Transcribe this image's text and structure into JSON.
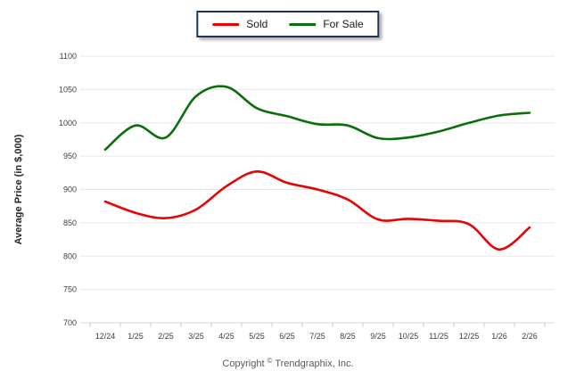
{
  "chart_data": {
    "type": "line",
    "categories": [
      "12/24",
      "1/25",
      "2/25",
      "3/25",
      "4/25",
      "5/25",
      "6/25",
      "7/25",
      "8/25",
      "9/25",
      "10/25",
      "11/25",
      "12/25",
      "1/26",
      "2/26"
    ],
    "series": [
      {
        "name": "Sold",
        "color": "#e60505",
        "values": [
          882,
          865,
          857,
          870,
          905,
          927,
          910,
          900,
          885,
          855,
          856,
          853,
          848,
          810,
          843
        ]
      },
      {
        "name": "For Sale",
        "color": "#0a6e0a",
        "values": [
          960,
          996,
          978,
          1040,
          1054,
          1022,
          1010,
          998,
          996,
          977,
          978,
          987,
          1000,
          1011,
          1015
        ]
      }
    ],
    "title": "",
    "xlabel": "",
    "ylabel": "Average Price (in $,000)",
    "ylim": [
      700,
      1100
    ],
    "ytick_step": 50,
    "grid": true,
    "legend_position": "top-center"
  },
  "legend": {
    "border_color": "#17375e"
  },
  "footer": {
    "prefix": "Copyright",
    "symbol": "©",
    "suffix": "Trendgraphix, Inc."
  }
}
